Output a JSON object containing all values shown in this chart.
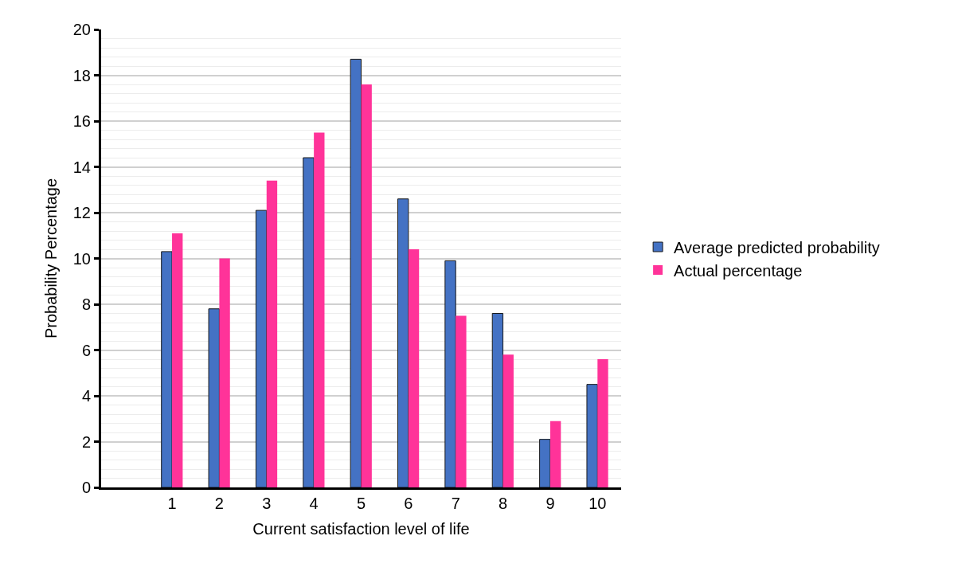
{
  "chart_data": {
    "type": "bar",
    "xlabel": "Current satisfaction level of life",
    "ylabel": "Probability Percentage",
    "categories": [
      null,
      "1",
      "2",
      "3",
      "4",
      "5",
      "6",
      "7",
      "8",
      "9",
      "10"
    ],
    "series": [
      {
        "name": "Average predicted probability",
        "color": "#4472c4",
        "values": [
          null,
          10.3,
          7.8,
          12.1,
          14.4,
          18.7,
          12.6,
          9.9,
          7.6,
          2.1,
          4.5
        ]
      },
      {
        "name": "Actual percentage",
        "color": "#ff3399",
        "values": [
          null,
          11.1,
          10.0,
          13.4,
          15.5,
          17.6,
          10.4,
          7.5,
          5.8,
          2.9,
          5.6
        ]
      }
    ],
    "ylim": [
      0,
      20
    ],
    "yticks": [
      0,
      2,
      4,
      6,
      8,
      10,
      12,
      14,
      16,
      18,
      20
    ],
    "grid": "y",
    "legend": "right"
  }
}
